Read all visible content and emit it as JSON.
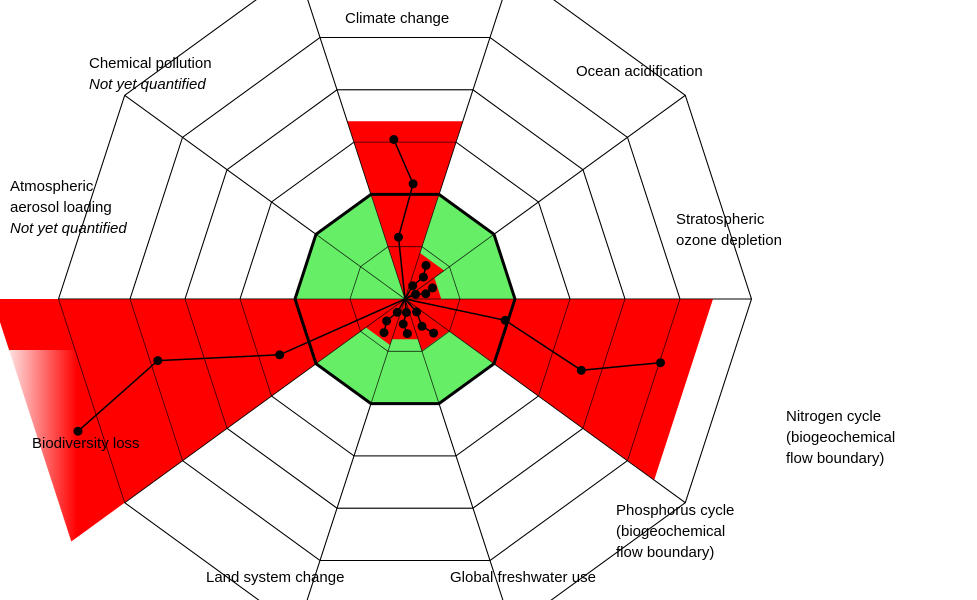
{
  "colors": {
    "background": "#ffffff",
    "exceeded": "#ff0000",
    "safe_zone": "#66ee66",
    "web_lines": "#000000",
    "points": "#000000"
  },
  "labels": {
    "climate": "Climate change",
    "ocean": "Ocean acidification",
    "ozone_1": "Stratospheric",
    "ozone_2": "ozone depletion",
    "nitrogen_1": "Nitrogen cycle",
    "nitrogen_2": "(biogeochemical",
    "nitrogen_3": "flow boundary)",
    "phosphorus_1": "Phosphorus cycle",
    "phosphorus_2": "(biogeochemical",
    "phosphorus_3": "flow boundary)",
    "freshwater": "Global freshwater use",
    "land": "Land system change",
    "biodiversity": "Biodiversity loss",
    "aerosol_1": "Atmospheric",
    "aerosol_2": "aerosol loading",
    "aerosol_3": "Not yet quantified",
    "chemical_1": "Chemical pollution",
    "chemical_2": "Not yet quantified"
  },
  "chart_data": {
    "type": "radar",
    "safe_boundary_ring": 2,
    "rings": 5,
    "sectors": [
      {
        "name": "Climate change",
        "status": "exceeded",
        "level": 3.4
      },
      {
        "name": "Ocean acidification",
        "status": "within",
        "level": 1.6
      },
      {
        "name": "Stratospheric ozone depletion",
        "status": "within",
        "level": 1.2
      },
      {
        "name": "Nitrogen cycle",
        "status": "exceeded",
        "level": 5.6
      },
      {
        "name": "Phosphorus cycle",
        "status": "within",
        "level": 1.8
      },
      {
        "name": "Global freshwater use",
        "status": "within",
        "level": 1.4
      },
      {
        "name": "Land system change",
        "status": "within",
        "level": 1.6
      },
      {
        "name": "Biodiversity loss",
        "status": "exceeded",
        "level": 7.5
      },
      {
        "name": "Atmospheric aerosol loading",
        "status": "not quantified",
        "level": null
      },
      {
        "name": "Chemical pollution",
        "status": "not quantified",
        "level": null
      }
    ]
  }
}
